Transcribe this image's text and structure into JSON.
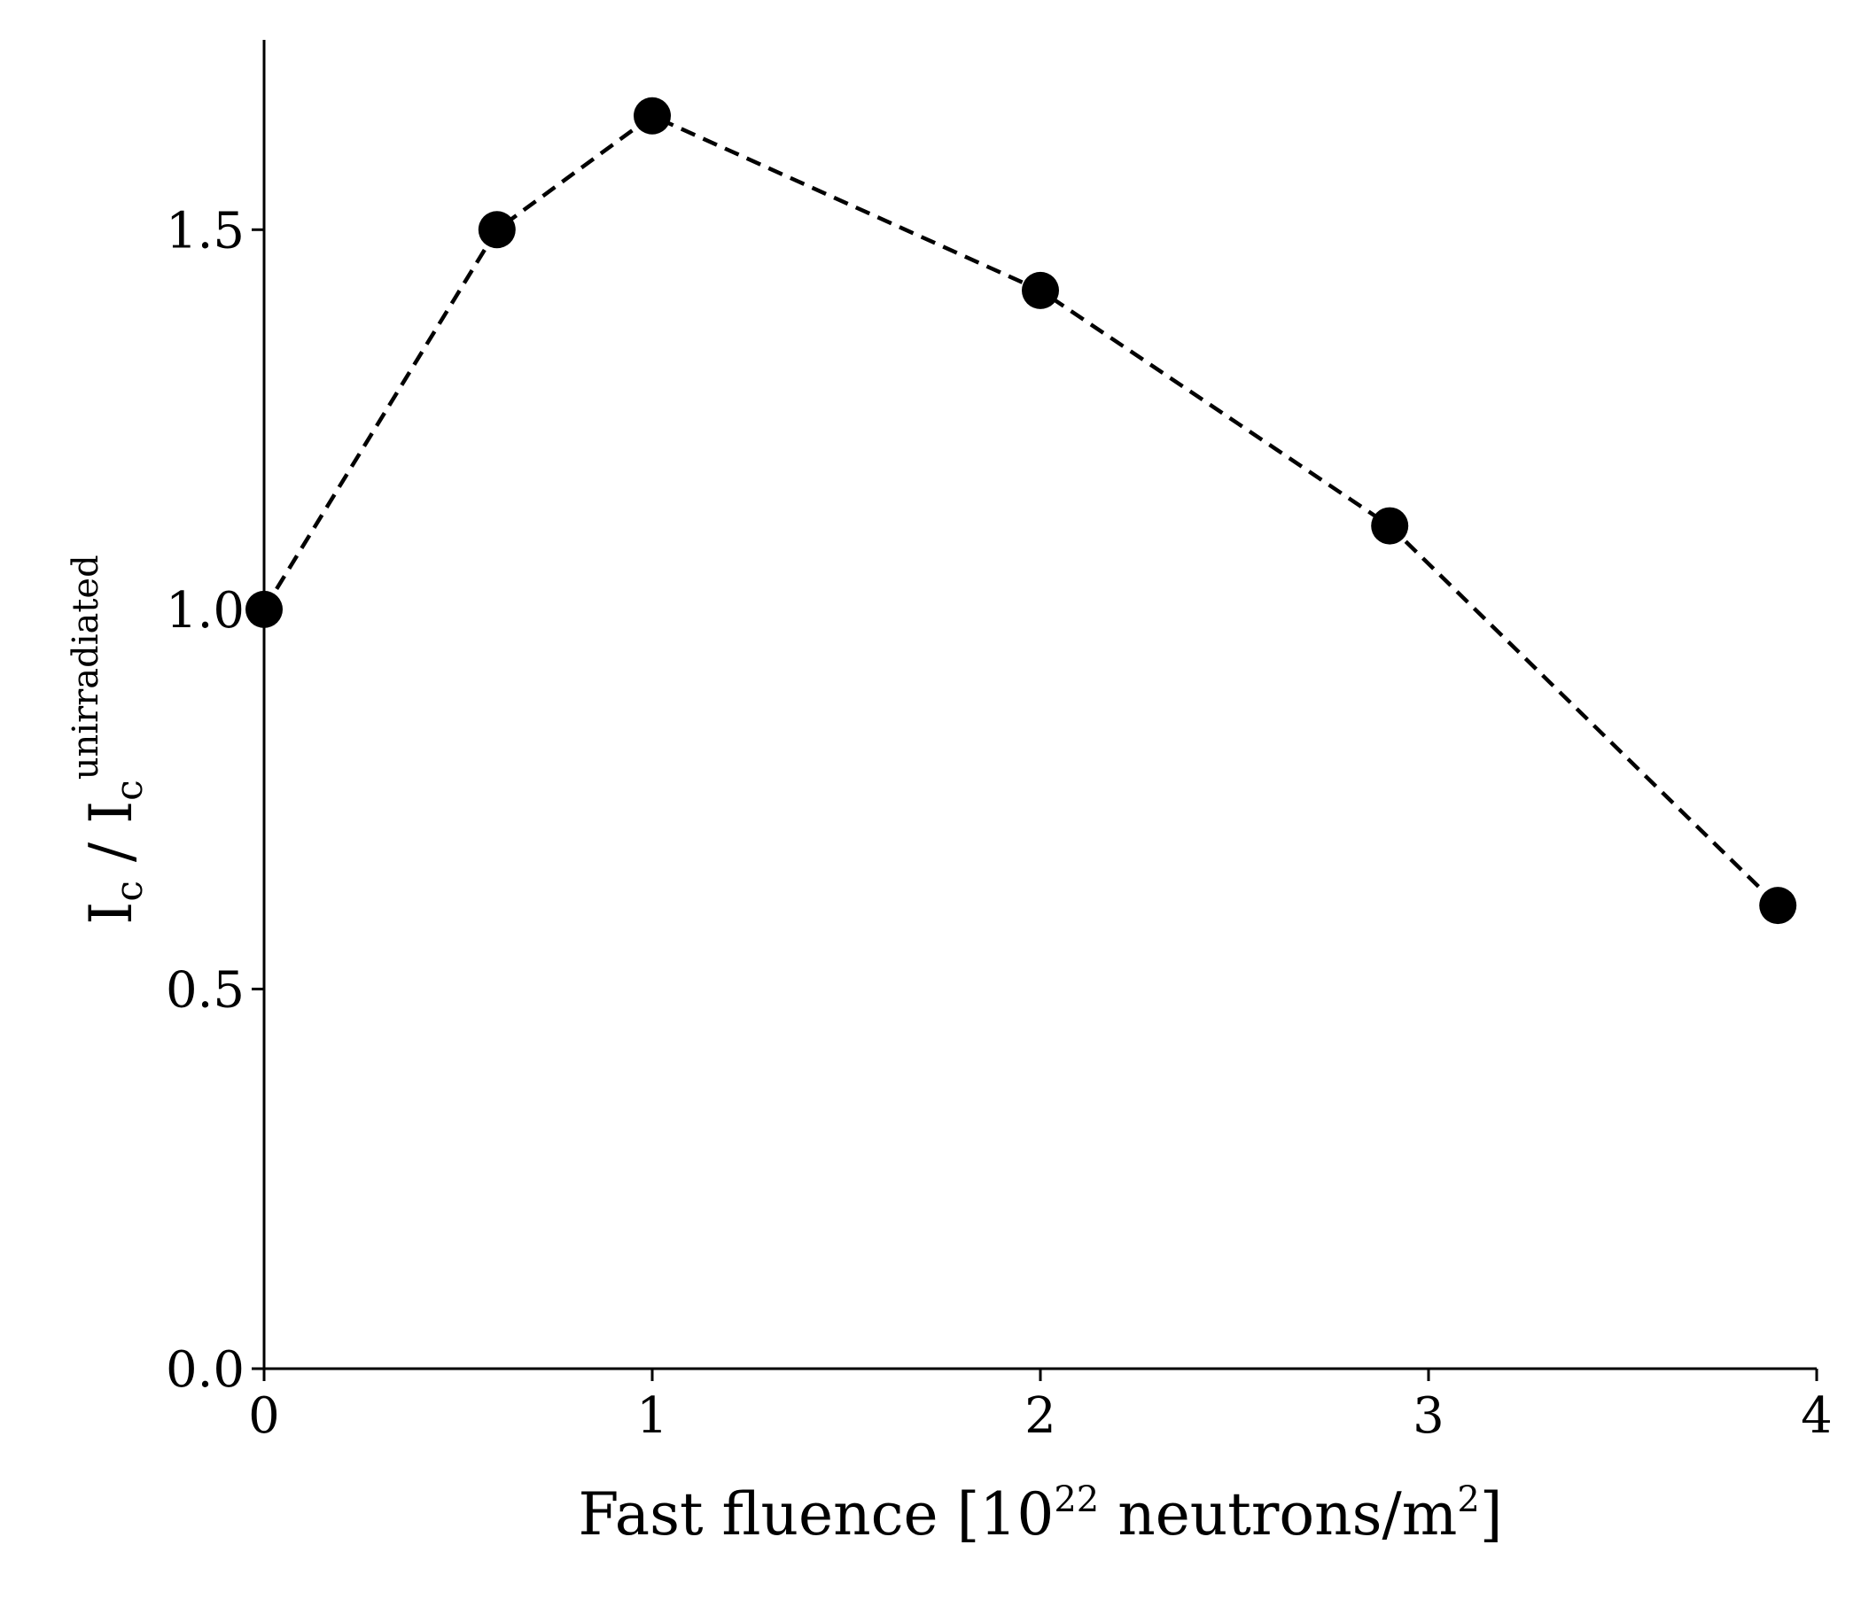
{
  "chart_data": {
    "type": "line",
    "title": "",
    "x": [
      0,
      0.6,
      1.0,
      2.0,
      2.9,
      3.9
    ],
    "series": [
      {
        "values": [
          1.0,
          1.5,
          1.65,
          1.42,
          1.11,
          0.61
        ]
      }
    ],
    "xlim": [
      0,
      4
    ],
    "ylim": [
      0,
      1.75
    ],
    "xticks": [
      "0",
      "1",
      "2",
      "3",
      "4"
    ],
    "yticks": [
      "0.0",
      "0.5",
      "1.0",
      "1.5"
    ],
    "xlabel": {
      "text_before": "Fast fluence [10",
      "superscript_1": "22",
      "text_middle": " neutrons/m",
      "superscript_2": "2",
      "text_after": "]"
    },
    "ylabel": {
      "symbol": "I",
      "subscript_1": "c",
      "separator": " / ",
      "symbol_2": "I",
      "subscript_2": "c",
      "superscript": "unirradiated"
    },
    "line_style": "dashed",
    "marker": "filled-circle",
    "color": "#000000",
    "grid": false,
    "legend": "none",
    "spines": "left-bottom"
  }
}
